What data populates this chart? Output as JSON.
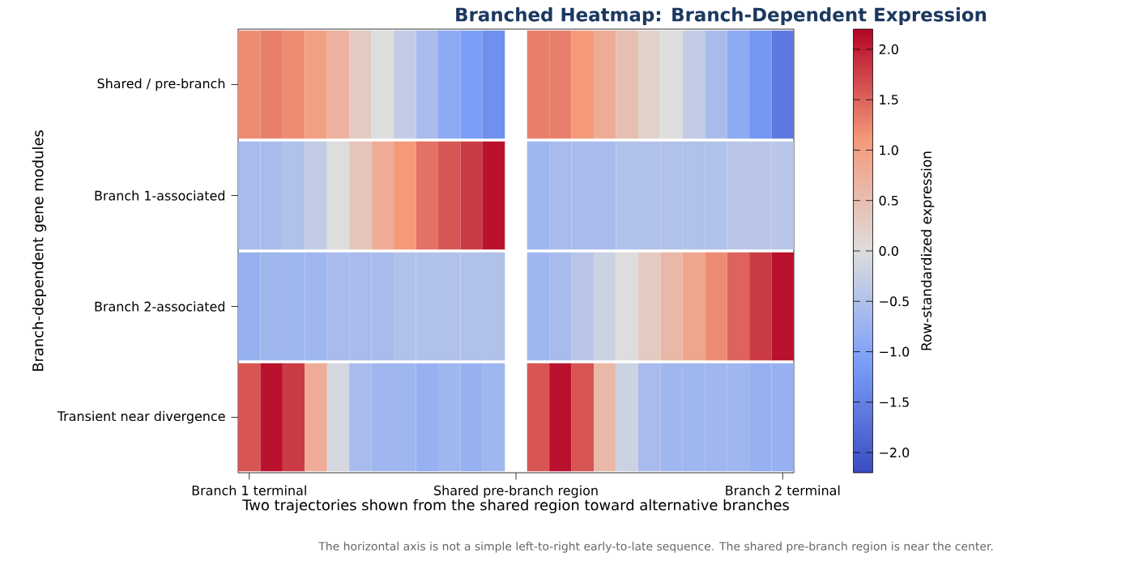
{
  "chart_data": {
    "type": "heatmap",
    "title": "Branched Heatmap: Branch-Dependent Expression",
    "xlabel": "Two trajectories shown from the shared region toward alternative branches",
    "ylabel": "Branch-dependent gene modules",
    "clabel": "Row-standardized expression",
    "annotations": [
      "The horizontal axis is not a simple left-to-right early-to-late sequence. The shared pre-branch region is near the center."
    ],
    "categories": [
      "Branch 1 terminal",
      null,
      null,
      null,
      null,
      null,
      null,
      null,
      null,
      null,
      null,
      null,
      "Shared pre-branch region",
      null,
      null,
      null,
      null,
      null,
      null,
      null,
      null,
      null,
      null,
      null,
      "Branch 2 terminal"
    ],
    "y_categories": [
      "Shared / pre-branch",
      "Branch 1-associated",
      "Branch 2-associated",
      "Transient near divergence"
    ],
    "cells": [
      [
        1.2,
        1.3,
        1.2,
        1.0,
        0.7,
        0.3,
        0.0,
        -0.3,
        -0.6,
        -0.9,
        -1.1,
        -1.3,
        null,
        1.3,
        1.3,
        1.1,
        0.8,
        0.5,
        0.2,
        0.0,
        -0.3,
        -0.6,
        -0.9,
        -1.2,
        -1.6
      ],
      [
        -0.6,
        -0.6,
        -0.5,
        -0.3,
        0.0,
        0.4,
        0.8,
        1.1,
        1.4,
        1.6,
        1.8,
        2.1,
        null,
        -0.7,
        -0.6,
        -0.6,
        -0.6,
        -0.5,
        -0.5,
        -0.5,
        -0.5,
        -0.5,
        -0.4,
        -0.4,
        -0.4
      ],
      [
        -0.8,
        -0.7,
        -0.7,
        -0.7,
        -0.6,
        -0.6,
        -0.6,
        -0.5,
        -0.5,
        -0.5,
        -0.5,
        -0.5,
        null,
        -0.7,
        -0.6,
        -0.4,
        -0.2,
        0.0,
        0.3,
        0.6,
        0.9,
        1.2,
        1.5,
        1.8,
        2.1
      ],
      [
        1.6,
        2.1,
        1.8,
        0.8,
        -0.1,
        -0.6,
        -0.7,
        -0.7,
        -0.8,
        -0.7,
        -0.8,
        -0.7,
        null,
        1.6,
        2.1,
        1.6,
        0.6,
        -0.2,
        -0.6,
        -0.7,
        -0.7,
        -0.7,
        -0.7,
        -0.8,
        -0.8
      ]
    ],
    "clim": [
      -2.2,
      2.2
    ],
    "cticks": [
      {
        "value": -2.0,
        "label": "−2.0"
      },
      {
        "value": -1.5,
        "label": "−1.5"
      },
      {
        "value": -1.0,
        "label": "−1.0"
      },
      {
        "value": -0.5,
        "label": "−0.5"
      },
      {
        "value": 0.0,
        "label": "0.0"
      },
      {
        "value": 0.5,
        "label": "0.5"
      },
      {
        "value": 1.0,
        "label": "1.0"
      },
      {
        "value": 1.5,
        "label": "1.5"
      },
      {
        "value": 2.0,
        "label": "2.0"
      }
    ]
  }
}
